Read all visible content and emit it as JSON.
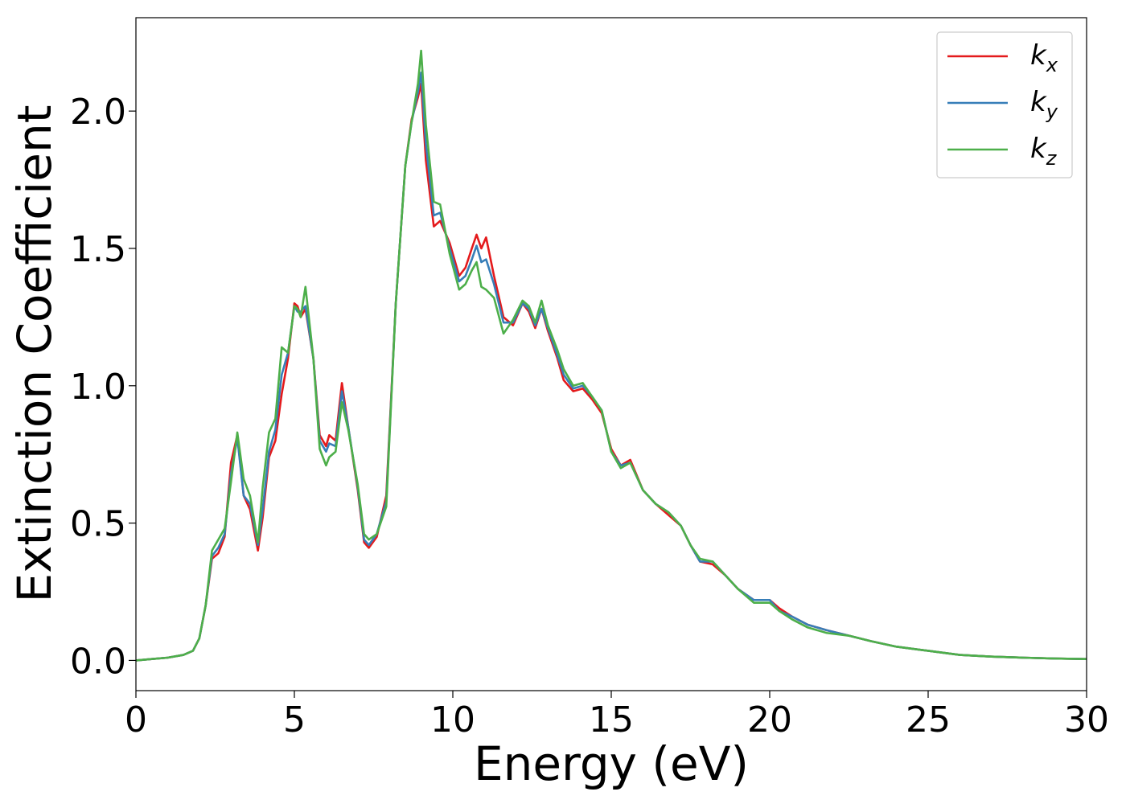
{
  "chart_data": {
    "type": "line",
    "xlabel": "Energy (eV)",
    "ylabel": "Extinction Coefficient",
    "xlim": [
      0,
      30
    ],
    "ylim": [
      -0.11,
      2.34
    ],
    "xticks": [
      0,
      5,
      10,
      15,
      20,
      25,
      30
    ],
    "xtick_labels": [
      "0",
      "5",
      "10",
      "15",
      "20",
      "25",
      "30"
    ],
    "yticks": [
      0.0,
      0.5,
      1.0,
      1.5,
      2.0
    ],
    "ytick_labels": [
      "0.0",
      "0.5",
      "1.0",
      "1.5",
      "2.0"
    ],
    "grid": false,
    "legend_position": "top-right",
    "series": [
      {
        "name": "k_x",
        "sub": "x",
        "color": "#e41a1c",
        "points": [
          [
            0,
            0
          ],
          [
            0.5,
            0.005
          ],
          [
            1,
            0.01
          ],
          [
            1.5,
            0.02
          ],
          [
            1.8,
            0.035
          ],
          [
            2.0,
            0.08
          ],
          [
            2.2,
            0.2
          ],
          [
            2.4,
            0.37
          ],
          [
            2.6,
            0.39
          ],
          [
            2.8,
            0.45
          ],
          [
            3.0,
            0.72
          ],
          [
            3.2,
            0.82
          ],
          [
            3.4,
            0.6
          ],
          [
            3.6,
            0.55
          ],
          [
            3.85,
            0.4
          ],
          [
            4.0,
            0.52
          ],
          [
            4.2,
            0.74
          ],
          [
            4.4,
            0.8
          ],
          [
            4.6,
            0.97
          ],
          [
            4.8,
            1.1
          ],
          [
            5.0,
            1.3
          ],
          [
            5.1,
            1.29
          ],
          [
            5.2,
            1.25
          ],
          [
            5.35,
            1.28
          ],
          [
            5.6,
            1.1
          ],
          [
            5.8,
            0.82
          ],
          [
            6.0,
            0.78
          ],
          [
            6.1,
            0.82
          ],
          [
            6.3,
            0.8
          ],
          [
            6.5,
            1.01
          ],
          [
            6.7,
            0.85
          ],
          [
            7.0,
            0.62
          ],
          [
            7.2,
            0.43
          ],
          [
            7.35,
            0.41
          ],
          [
            7.6,
            0.45
          ],
          [
            7.9,
            0.6
          ],
          [
            8.2,
            1.3
          ],
          [
            8.5,
            1.8
          ],
          [
            8.7,
            1.97
          ],
          [
            8.9,
            2.05
          ],
          [
            9.0,
            2.1
          ],
          [
            9.15,
            1.82
          ],
          [
            9.4,
            1.58
          ],
          [
            9.6,
            1.6
          ],
          [
            9.9,
            1.52
          ],
          [
            10.2,
            1.4
          ],
          [
            10.4,
            1.43
          ],
          [
            10.6,
            1.5
          ],
          [
            10.75,
            1.55
          ],
          [
            10.9,
            1.5
          ],
          [
            11.05,
            1.54
          ],
          [
            11.3,
            1.4
          ],
          [
            11.6,
            1.25
          ],
          [
            11.9,
            1.22
          ],
          [
            12.2,
            1.3
          ],
          [
            12.4,
            1.27
          ],
          [
            12.6,
            1.21
          ],
          [
            12.8,
            1.28
          ],
          [
            13.0,
            1.2
          ],
          [
            13.3,
            1.1
          ],
          [
            13.5,
            1.02
          ],
          [
            13.8,
            0.98
          ],
          [
            14.1,
            0.99
          ],
          [
            14.4,
            0.95
          ],
          [
            14.7,
            0.9
          ],
          [
            15.0,
            0.77
          ],
          [
            15.3,
            0.71
          ],
          [
            15.6,
            0.73
          ],
          [
            16.0,
            0.62
          ],
          [
            16.4,
            0.57
          ],
          [
            16.8,
            0.53
          ],
          [
            17.2,
            0.49
          ],
          [
            17.5,
            0.42
          ],
          [
            17.8,
            0.36
          ],
          [
            18.2,
            0.35
          ],
          [
            18.6,
            0.31
          ],
          [
            19.0,
            0.26
          ],
          [
            19.5,
            0.22
          ],
          [
            20.0,
            0.22
          ],
          [
            20.3,
            0.19
          ],
          [
            20.7,
            0.16
          ],
          [
            21.2,
            0.13
          ],
          [
            21.8,
            0.11
          ],
          [
            22.5,
            0.09
          ],
          [
            23.2,
            0.07
          ],
          [
            24.0,
            0.05
          ],
          [
            25.0,
            0.035
          ],
          [
            26.0,
            0.02
          ],
          [
            27.0,
            0.014
          ],
          [
            28.0,
            0.01
          ],
          [
            29.0,
            0.007
          ],
          [
            30.0,
            0.005
          ]
        ]
      },
      {
        "name": "k_y",
        "sub": "y",
        "color": "#377eb8",
        "points": [
          [
            0,
            0
          ],
          [
            0.5,
            0.005
          ],
          [
            1,
            0.01
          ],
          [
            1.5,
            0.02
          ],
          [
            1.8,
            0.035
          ],
          [
            2.0,
            0.08
          ],
          [
            2.2,
            0.2
          ],
          [
            2.4,
            0.38
          ],
          [
            2.6,
            0.41
          ],
          [
            2.8,
            0.46
          ],
          [
            3.0,
            0.68
          ],
          [
            3.2,
            0.81
          ],
          [
            3.4,
            0.6
          ],
          [
            3.6,
            0.57
          ],
          [
            3.85,
            0.42
          ],
          [
            4.0,
            0.55
          ],
          [
            4.2,
            0.76
          ],
          [
            4.4,
            0.84
          ],
          [
            4.6,
            1.04
          ],
          [
            4.8,
            1.12
          ],
          [
            5.0,
            1.29
          ],
          [
            5.1,
            1.27
          ],
          [
            5.2,
            1.27
          ],
          [
            5.35,
            1.29
          ],
          [
            5.6,
            1.1
          ],
          [
            5.8,
            0.8
          ],
          [
            6.0,
            0.76
          ],
          [
            6.1,
            0.79
          ],
          [
            6.3,
            0.78
          ],
          [
            6.5,
            0.98
          ],
          [
            6.7,
            0.85
          ],
          [
            7.0,
            0.63
          ],
          [
            7.2,
            0.44
          ],
          [
            7.35,
            0.42
          ],
          [
            7.6,
            0.46
          ],
          [
            7.9,
            0.58
          ],
          [
            8.2,
            1.3
          ],
          [
            8.5,
            1.8
          ],
          [
            8.7,
            1.96
          ],
          [
            8.9,
            2.07
          ],
          [
            9.0,
            2.14
          ],
          [
            9.15,
            1.88
          ],
          [
            9.4,
            1.62
          ],
          [
            9.6,
            1.63
          ],
          [
            9.9,
            1.5
          ],
          [
            10.2,
            1.38
          ],
          [
            10.4,
            1.4
          ],
          [
            10.6,
            1.46
          ],
          [
            10.75,
            1.51
          ],
          [
            10.9,
            1.45
          ],
          [
            11.05,
            1.46
          ],
          [
            11.3,
            1.37
          ],
          [
            11.6,
            1.23
          ],
          [
            11.9,
            1.23
          ],
          [
            12.2,
            1.3
          ],
          [
            12.4,
            1.28
          ],
          [
            12.6,
            1.22
          ],
          [
            12.8,
            1.28
          ],
          [
            13.0,
            1.21
          ],
          [
            13.3,
            1.11
          ],
          [
            13.5,
            1.04
          ],
          [
            13.8,
            0.99
          ],
          [
            14.1,
            1.0
          ],
          [
            14.4,
            0.96
          ],
          [
            14.7,
            0.91
          ],
          [
            15.0,
            0.76
          ],
          [
            15.3,
            0.71
          ],
          [
            15.6,
            0.72
          ],
          [
            16.0,
            0.62
          ],
          [
            16.4,
            0.57
          ],
          [
            16.8,
            0.54
          ],
          [
            17.2,
            0.49
          ],
          [
            17.5,
            0.42
          ],
          [
            17.8,
            0.36
          ],
          [
            18.2,
            0.36
          ],
          [
            18.6,
            0.31
          ],
          [
            19.0,
            0.26
          ],
          [
            19.5,
            0.22
          ],
          [
            20.0,
            0.22
          ],
          [
            20.3,
            0.18
          ],
          [
            20.7,
            0.16
          ],
          [
            21.2,
            0.13
          ],
          [
            21.8,
            0.11
          ],
          [
            22.5,
            0.09
          ],
          [
            23.2,
            0.07
          ],
          [
            24.0,
            0.05
          ],
          [
            25.0,
            0.035
          ],
          [
            26.0,
            0.02
          ],
          [
            27.0,
            0.014
          ],
          [
            28.0,
            0.01
          ],
          [
            29.0,
            0.007
          ],
          [
            30.0,
            0.005
          ]
        ]
      },
      {
        "name": "k_z",
        "sub": "z",
        "color": "#4daf4a",
        "points": [
          [
            0,
            0
          ],
          [
            0.5,
            0.005
          ],
          [
            1,
            0.01
          ],
          [
            1.5,
            0.02
          ],
          [
            1.8,
            0.035
          ],
          [
            2.0,
            0.08
          ],
          [
            2.2,
            0.2
          ],
          [
            2.4,
            0.4
          ],
          [
            2.6,
            0.44
          ],
          [
            2.8,
            0.48
          ],
          [
            3.0,
            0.65
          ],
          [
            3.2,
            0.83
          ],
          [
            3.4,
            0.66
          ],
          [
            3.6,
            0.6
          ],
          [
            3.85,
            0.43
          ],
          [
            4.0,
            0.63
          ],
          [
            4.2,
            0.83
          ],
          [
            4.4,
            0.88
          ],
          [
            4.6,
            1.14
          ],
          [
            4.8,
            1.12
          ],
          [
            5.0,
            1.29
          ],
          [
            5.1,
            1.28
          ],
          [
            5.2,
            1.25
          ],
          [
            5.35,
            1.36
          ],
          [
            5.6,
            1.1
          ],
          [
            5.8,
            0.77
          ],
          [
            6.0,
            0.71
          ],
          [
            6.1,
            0.74
          ],
          [
            6.3,
            0.76
          ],
          [
            6.5,
            0.94
          ],
          [
            6.7,
            0.84
          ],
          [
            7.0,
            0.64
          ],
          [
            7.2,
            0.46
          ],
          [
            7.35,
            0.44
          ],
          [
            7.6,
            0.46
          ],
          [
            7.9,
            0.56
          ],
          [
            8.2,
            1.3
          ],
          [
            8.5,
            1.8
          ],
          [
            8.7,
            1.96
          ],
          [
            8.9,
            2.1
          ],
          [
            9.0,
            2.22
          ],
          [
            9.15,
            1.95
          ],
          [
            9.4,
            1.67
          ],
          [
            9.6,
            1.66
          ],
          [
            9.9,
            1.48
          ],
          [
            10.2,
            1.35
          ],
          [
            10.4,
            1.37
          ],
          [
            10.6,
            1.42
          ],
          [
            10.75,
            1.45
          ],
          [
            10.9,
            1.36
          ],
          [
            11.05,
            1.35
          ],
          [
            11.3,
            1.32
          ],
          [
            11.6,
            1.19
          ],
          [
            11.9,
            1.24
          ],
          [
            12.2,
            1.31
          ],
          [
            12.4,
            1.29
          ],
          [
            12.6,
            1.23
          ],
          [
            12.8,
            1.31
          ],
          [
            13.0,
            1.22
          ],
          [
            13.3,
            1.13
          ],
          [
            13.5,
            1.06
          ],
          [
            13.8,
            1.0
          ],
          [
            14.1,
            1.01
          ],
          [
            14.4,
            0.96
          ],
          [
            14.7,
            0.91
          ],
          [
            15.0,
            0.76
          ],
          [
            15.3,
            0.7
          ],
          [
            15.6,
            0.72
          ],
          [
            16.0,
            0.62
          ],
          [
            16.4,
            0.57
          ],
          [
            16.8,
            0.54
          ],
          [
            17.2,
            0.49
          ],
          [
            17.5,
            0.42
          ],
          [
            17.8,
            0.37
          ],
          [
            18.2,
            0.36
          ],
          [
            18.6,
            0.31
          ],
          [
            19.0,
            0.26
          ],
          [
            19.5,
            0.21
          ],
          [
            20.0,
            0.21
          ],
          [
            20.3,
            0.18
          ],
          [
            20.7,
            0.15
          ],
          [
            21.2,
            0.12
          ],
          [
            21.8,
            0.1
          ],
          [
            22.5,
            0.09
          ],
          [
            23.2,
            0.07
          ],
          [
            24.0,
            0.05
          ],
          [
            25.0,
            0.035
          ],
          [
            26.0,
            0.02
          ],
          [
            27.0,
            0.014
          ],
          [
            28.0,
            0.01
          ],
          [
            29.0,
            0.007
          ],
          [
            30.0,
            0.005
          ]
        ]
      }
    ]
  }
}
